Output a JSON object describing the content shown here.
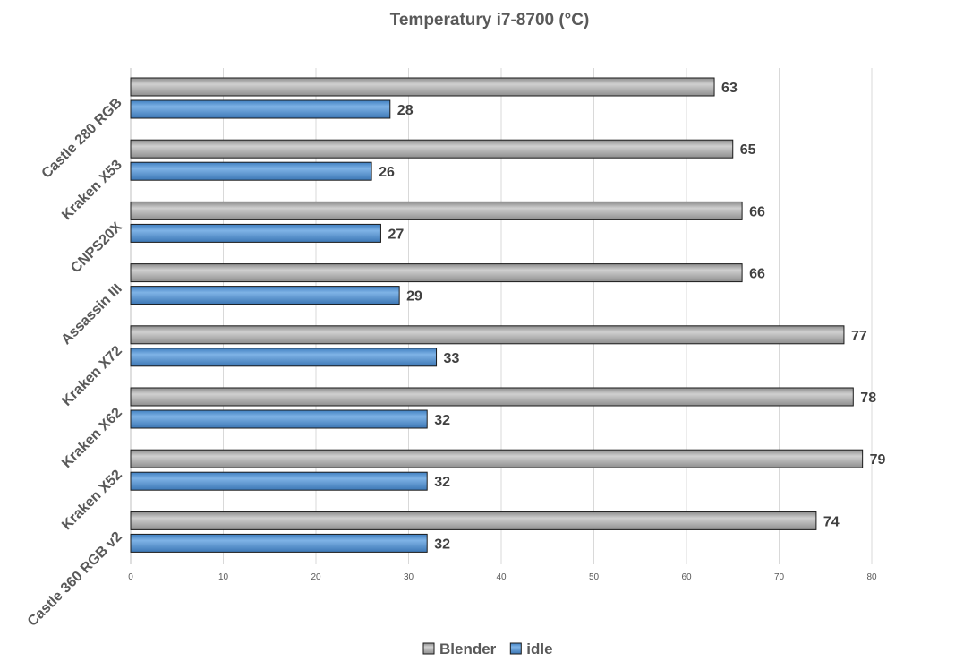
{
  "chart_data": {
    "type": "bar",
    "orientation": "horizontal",
    "title": "Temperatury i7-8700 (°C)",
    "xlabel": "",
    "ylabel": "",
    "xlim": [
      0,
      80
    ],
    "x_ticks": [
      "0",
      "10",
      "20",
      "30",
      "40",
      "50",
      "60",
      "70",
      "80"
    ],
    "grid": true,
    "legend_position": "bottom",
    "categories": [
      "Castle 280 RGB",
      "Kraken X53",
      "CNPS20X",
      "Assassin III",
      "Kraken X72",
      "Kraken X62",
      "Kraken X52",
      "Castle 360 RGB v2"
    ],
    "series": [
      {
        "name": "Blender",
        "color": "#a6a6a6",
        "values": [
          63,
          65,
          66,
          66,
          77,
          78,
          79,
          74
        ]
      },
      {
        "name": "idle",
        "color": "#5b9bd5",
        "values": [
          28,
          26,
          27,
          29,
          33,
          32,
          32,
          32
        ]
      }
    ]
  }
}
